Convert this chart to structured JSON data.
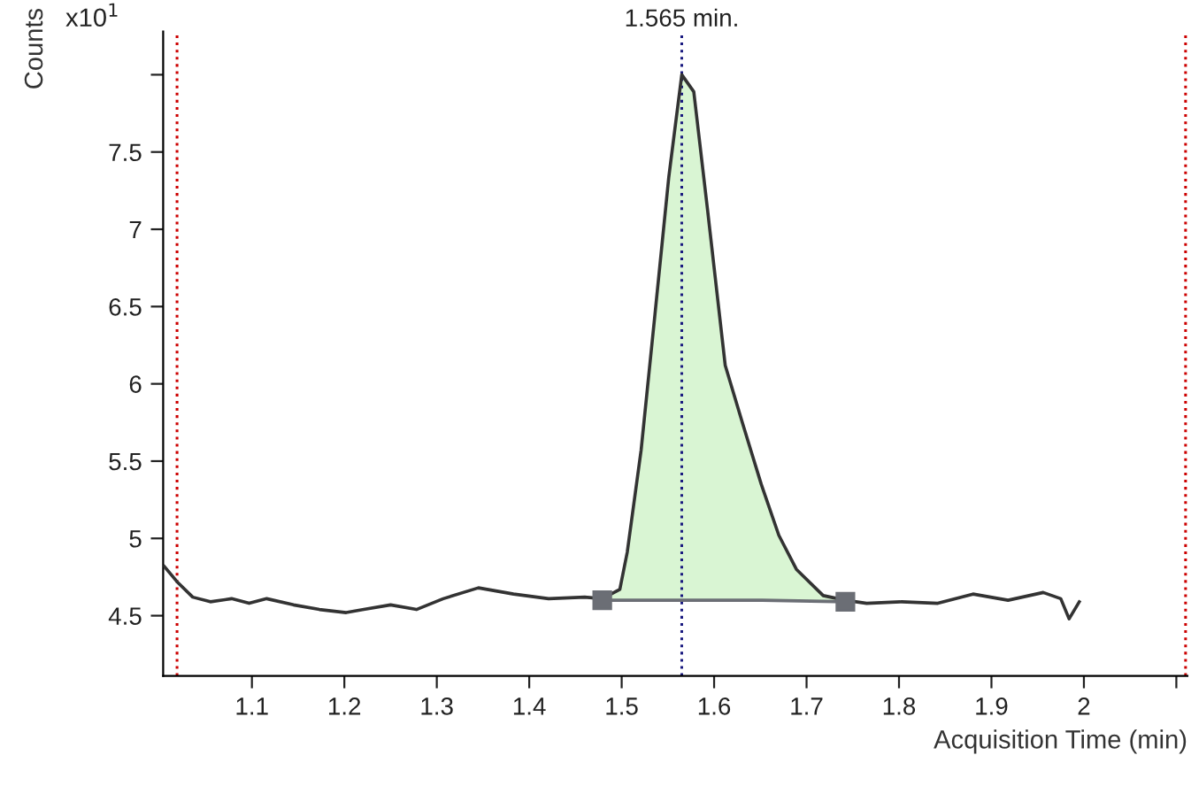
{
  "chart_data": {
    "type": "line",
    "xlabel": "Acquisition Time (min)",
    "ylabel": "Counts",
    "annotations": [
      "x10$^{1}$"
    ],
    "xlim": [
      1.004,
      2.112
    ],
    "ylim": [
      4.11,
      8.28
    ],
    "xticks": [
      1.1,
      1.2,
      1.3,
      1.4,
      1.5,
      1.6,
      1.7,
      1.8,
      1.9,
      2,
      {
        "value": 2.1,
        "label": null
      }
    ],
    "yticks": [
      4.5,
      5,
      5.5,
      6,
      6.5,
      7,
      7.5,
      {
        "value": 8,
        "label": null
      }
    ],
    "grid": false,
    "legend": false,
    "marker": "none",
    "line_style": "solid",
    "series": [
      {
        "type": "area",
        "color": "#d9f5d3",
        "x": [
          1.479,
          1.498,
          1.506,
          1.521,
          1.536,
          1.551,
          1.565,
          1.578,
          1.593,
          1.612,
          1.631,
          1.651,
          1.67,
          1.689,
          1.718,
          1.742
        ],
        "values": [
          4.61,
          4.67,
          4.91,
          5.57,
          6.45,
          7.34,
          8.0,
          7.89,
          7.12,
          6.12,
          5.74,
          5.35,
          5.02,
          4.8,
          4.63,
          4.6
        ]
      },
      {
        "color": "#333333",
        "x": [
          1.005,
          1.019,
          1.036,
          1.055,
          1.078,
          1.097,
          1.116,
          1.145,
          1.173,
          1.202,
          1.221,
          1.25,
          1.278,
          1.307,
          1.345,
          1.383,
          1.421,
          1.46,
          1.479,
          1.498,
          1.506,
          1.521,
          1.536,
          1.551,
          1.565,
          1.578,
          1.593,
          1.612,
          1.631,
          1.651,
          1.67,
          1.689,
          1.718,
          1.742,
          1.765,
          1.803,
          1.842,
          1.88,
          1.918,
          1.956,
          1.975,
          1.984,
          1.995
        ],
        "values": [
          4.82,
          4.72,
          4.62,
          4.59,
          4.61,
          4.58,
          4.61,
          4.57,
          4.54,
          4.52,
          4.54,
          4.57,
          4.54,
          4.61,
          4.68,
          4.64,
          4.61,
          4.62,
          4.61,
          4.67,
          4.91,
          5.57,
          6.45,
          7.34,
          8.0,
          7.89,
          7.12,
          6.12,
          5.74,
          5.35,
          5.02,
          4.8,
          4.63,
          4.6,
          4.58,
          4.59,
          4.58,
          4.64,
          4.6,
          4.65,
          4.61,
          4.48,
          4.59
        ]
      },
      {
        "type": "line",
        "color": "#6b6e75",
        "marker": "square",
        "x": [
          1.479,
          1.652,
          1.742
        ],
        "values": [
          4.6,
          4.6,
          4.59
        ]
      }
    ],
    "ref_lines": [
      {
        "axis": "x",
        "value": 1.565,
        "label": "1.565 min.",
        "color": "#1a1a80",
        "line_style": "dotted"
      },
      {
        "axis": "x",
        "value": 1.019,
        "color": "#cc0000",
        "line_style": "dotted"
      },
      {
        "axis": "x",
        "value": 2.11,
        "color": "#cc0000",
        "line_style": "dotted"
      }
    ]
  }
}
